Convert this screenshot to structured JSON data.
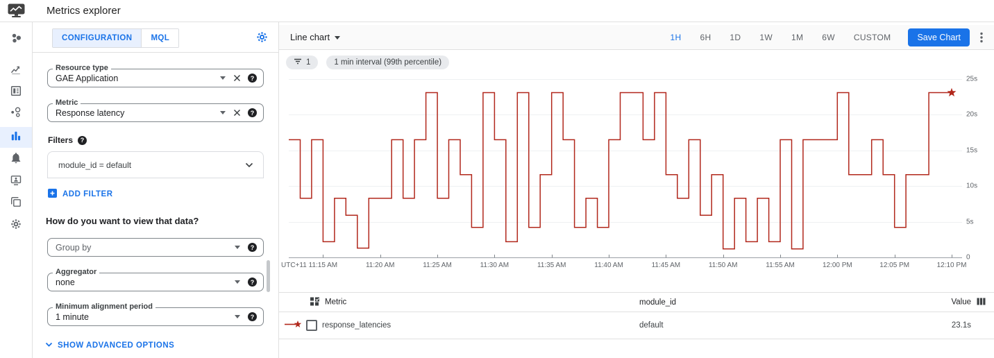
{
  "app": {
    "title": "Metrics explorer"
  },
  "icons": {
    "help": "?"
  },
  "sidebar": {
    "items": [
      {
        "id": "overview",
        "icon": "cluster-icon",
        "active": false
      },
      {
        "id": "metrics",
        "icon": "trending-chart-icon",
        "active": false
      },
      {
        "id": "dashboards",
        "icon": "dashboard-icon",
        "active": false
      },
      {
        "id": "services",
        "icon": "services-icon",
        "active": false
      },
      {
        "id": "metrics-explorer",
        "icon": "bar-chart-icon",
        "active": true
      },
      {
        "id": "alerting",
        "icon": "bell-icon",
        "active": false
      },
      {
        "id": "uptime-checks",
        "icon": "uptime-monitor-icon",
        "active": false
      },
      {
        "id": "groups",
        "icon": "copy-icon",
        "active": false
      },
      {
        "id": "settings",
        "icon": "gear-icon",
        "active": false
      }
    ]
  },
  "config": {
    "tabs": {
      "configuration": "CONFIGURATION",
      "mql": "MQL"
    },
    "resource_type": {
      "label": "Resource type",
      "value": "GAE Application"
    },
    "metric": {
      "label": "Metric",
      "value": "Response latency"
    },
    "filters": {
      "label": "Filters",
      "filter_value": "module_id = default",
      "add_filter": "ADD FILTER"
    },
    "view_heading": "How do you want to view that data?",
    "group_by": {
      "placeholder": "Group by"
    },
    "aggregator": {
      "label": "Aggregator",
      "value": "none"
    },
    "alignment": {
      "label": "Minimum alignment period",
      "value": "1 minute"
    },
    "advanced": "SHOW ADVANCED OPTIONS"
  },
  "toolbar": {
    "chart_type": "Line chart",
    "ranges": [
      "1H",
      "6H",
      "1D",
      "1W",
      "1M",
      "6W",
      "CUSTOM"
    ],
    "active_range": "1H",
    "save_label": "Save Chart"
  },
  "chips": [
    {
      "icon": "filter-list-icon",
      "label": "1"
    },
    {
      "label": "1 min interval (99th percentile)"
    }
  ],
  "chart_data": {
    "type": "line",
    "title": "",
    "x_first_label": "UTC+11",
    "x_start": "11:12 AM",
    "x_end": "12:10 PM",
    "x_ticks": [
      "11:15 AM",
      "11:20 AM",
      "11:25 AM",
      "11:30 AM",
      "11:35 AM",
      "11:40 AM",
      "11:45 AM",
      "11:50 AM",
      "11:55 AM",
      "12:00 PM",
      "12:05 PM",
      "12:10 PM"
    ],
    "y_ticks": [
      {
        "label": "25s",
        "value": 25
      },
      {
        "label": "20s",
        "value": 20
      },
      {
        "label": "15s",
        "value": 15
      },
      {
        "label": "10s",
        "value": 10
      },
      {
        "label": "5s",
        "value": 5
      },
      {
        "label": "0",
        "value": 0
      }
    ],
    "y_max": 25,
    "y_unit": "s",
    "grid": true,
    "legend_position": "table-below",
    "series": [
      {
        "name": "response_latencies",
        "color": "#b1271b",
        "step": true,
        "interval_minutes": 1,
        "end_marker": "star",
        "values": [
          16.5,
          8.3,
          16.5,
          2.2,
          8.3,
          5.9,
          1.3,
          8.3,
          8.3,
          16.5,
          8.3,
          16.5,
          23.1,
          8.3,
          16.5,
          11.6,
          4.2,
          23.1,
          16.5,
          2.2,
          23.1,
          4.2,
          11.6,
          23.1,
          16.5,
          4.2,
          8.3,
          4.2,
          16.5,
          23.1,
          23.1,
          16.5,
          23.1,
          11.6,
          8.3,
          16.5,
          5.9,
          11.6,
          1.2,
          8.3,
          2.2,
          8.3,
          2.2,
          16.5,
          1.2,
          16.5,
          16.5,
          16.5,
          23.1,
          11.6,
          11.6,
          16.5,
          11.6,
          4.2,
          11.6,
          11.6,
          23.1,
          23.1,
          23.1
        ]
      }
    ]
  },
  "table": {
    "headers": {
      "metric": "Metric",
      "module_id": "module_id",
      "value": "Value"
    },
    "rows": [
      {
        "metric": "response_latencies",
        "module_id": "default",
        "value": "23.1s",
        "color": "#b1271b"
      }
    ]
  }
}
